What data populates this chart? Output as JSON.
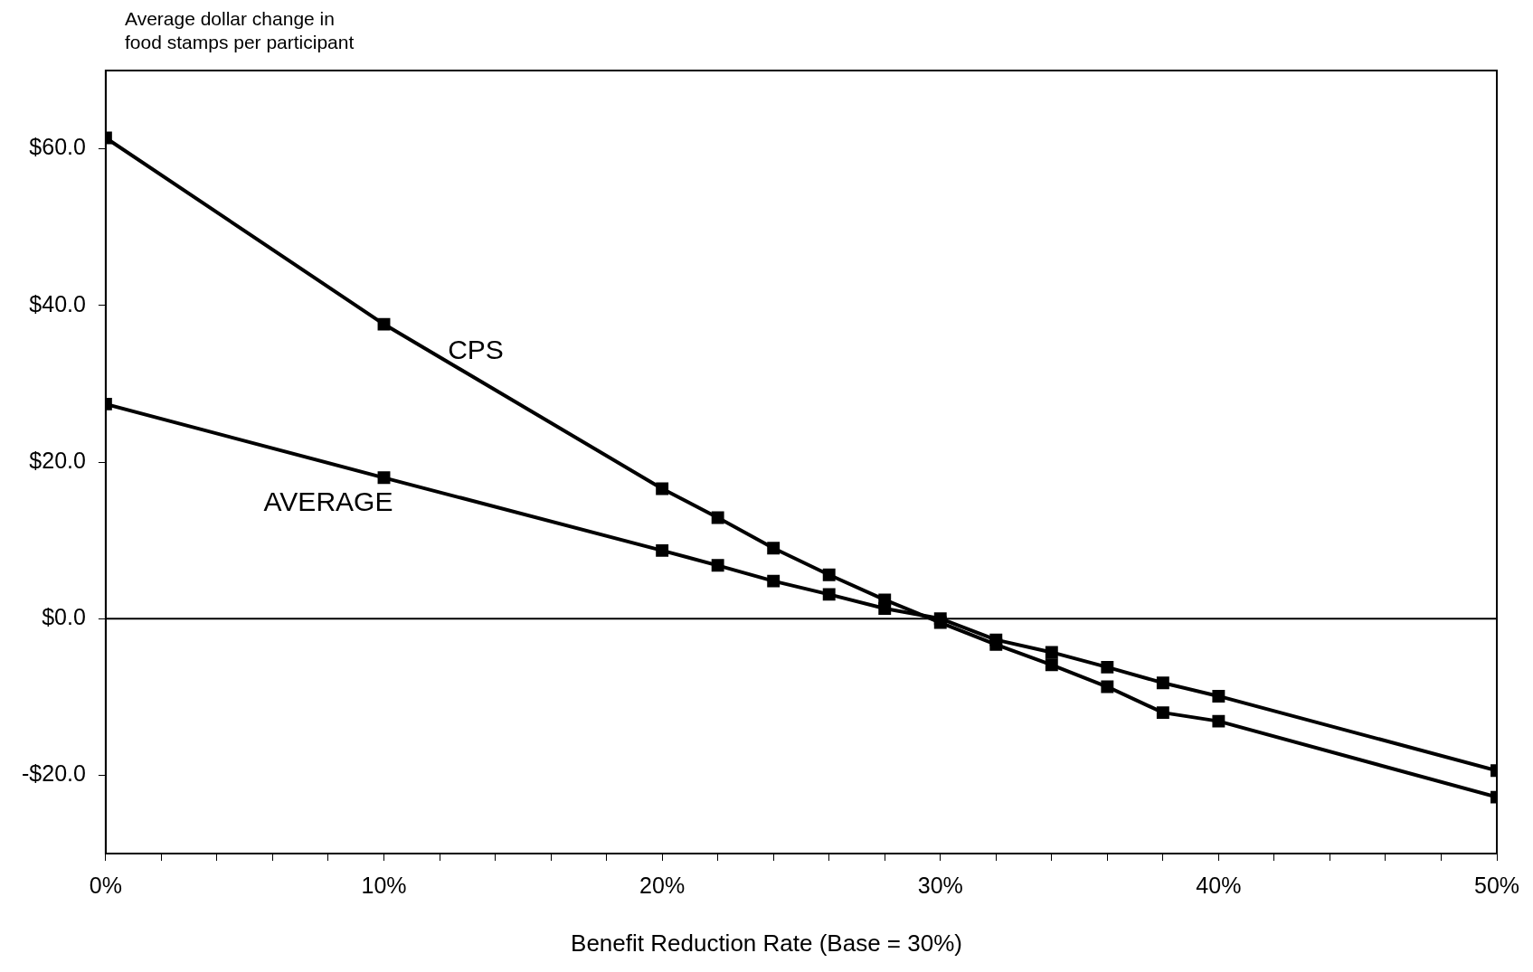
{
  "chart_data": {
    "type": "line",
    "ylabel": "Average dollar change in\nfood stamps per participant",
    "xlabel": "Benefit Reduction Rate (Base = 30%)",
    "x": [
      0,
      10,
      20,
      22,
      24,
      26,
      28,
      30,
      32,
      34,
      36,
      38,
      40,
      50
    ],
    "series": [
      {
        "name": "CPS",
        "color": "#000000",
        "values": [
          61.4,
          37.6,
          16.6,
          12.9,
          9.0,
          5.6,
          2.4,
          -0.5,
          -3.3,
          -5.9,
          -8.7,
          -12.0,
          -13.1,
          -22.8
        ]
      },
      {
        "name": "AVERAGE",
        "color": "#000000",
        "values": [
          27.4,
          18.0,
          8.7,
          6.8,
          4.8,
          3.1,
          1.3,
          0,
          -2.7,
          -4.3,
          -6.2,
          -8.2,
          -9.9,
          -19.4
        ]
      }
    ],
    "xlim": [
      0,
      50
    ],
    "xticks": [
      {
        "value": 0,
        "label": "0%"
      },
      {
        "value": 2,
        "label": null
      },
      {
        "value": 4,
        "label": null
      },
      {
        "value": 6,
        "label": null
      },
      {
        "value": 8,
        "label": null
      },
      {
        "value": 10,
        "label": "10%"
      },
      {
        "value": 12,
        "label": null
      },
      {
        "value": 14,
        "label": null
      },
      {
        "value": 16,
        "label": null
      },
      {
        "value": 18,
        "label": null
      },
      {
        "value": 20,
        "label": "20%"
      },
      {
        "value": 22,
        "label": null
      },
      {
        "value": 24,
        "label": null
      },
      {
        "value": 26,
        "label": null
      },
      {
        "value": 28,
        "label": null
      },
      {
        "value": 30,
        "label": "30%"
      },
      {
        "value": 32,
        "label": null
      },
      {
        "value": 34,
        "label": null
      },
      {
        "value": 36,
        "label": null
      },
      {
        "value": 38,
        "label": null
      },
      {
        "value": 40,
        "label": "40%"
      },
      {
        "value": 42,
        "label": null
      },
      {
        "value": 44,
        "label": null
      },
      {
        "value": 46,
        "label": null
      },
      {
        "value": 48,
        "label": null
      },
      {
        "value": 50,
        "label": "50%"
      }
    ],
    "ylim": [
      -30,
      70
    ],
    "yticks": [
      {
        "value": -20,
        "label": "-$20.0"
      },
      {
        "value": 0,
        "label": "$0.0"
      },
      {
        "value": 20,
        "label": "$20.0"
      },
      {
        "value": 40,
        "label": "$40.0"
      },
      {
        "value": 60,
        "label": "$60.0"
      }
    ],
    "ref_lines": [
      {
        "axis": "y",
        "value": 0,
        "color": "#000000"
      }
    ],
    "grid": false,
    "legend": false,
    "marker": "square",
    "line_style": "solid"
  }
}
